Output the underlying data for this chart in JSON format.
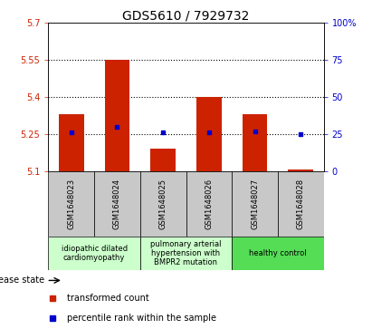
{
  "title": "GDS5610 / 7929732",
  "samples": [
    "GSM1648023",
    "GSM1648024",
    "GSM1648025",
    "GSM1648026",
    "GSM1648027",
    "GSM1648028"
  ],
  "bar_values": [
    5.33,
    5.55,
    5.19,
    5.4,
    5.33,
    5.105
  ],
  "percentile_values": [
    26,
    30,
    26,
    26,
    27,
    25
  ],
  "ylim_left": [
    5.1,
    5.7
  ],
  "ylim_right": [
    0,
    100
  ],
  "yticks_left": [
    5.1,
    5.25,
    5.4,
    5.55,
    5.7
  ],
  "yticks_right": [
    0,
    25,
    50,
    75,
    100
  ],
  "bar_color": "#cc2200",
  "dot_color": "#0000cc",
  "bar_width": 0.55,
  "baseline": 5.1,
  "grid_lines": [
    5.25,
    5.4,
    5.55
  ],
  "disease_groups": [
    {
      "label": "idiopathic dilated\ncardiomyopathy",
      "indices": [
        0,
        1
      ],
      "color": "#ccffcc"
    },
    {
      "label": "pulmonary arterial\nhypertension with\nBMPR2 mutation",
      "indices": [
        2,
        3
      ],
      "color": "#ccffcc"
    },
    {
      "label": "healthy control",
      "indices": [
        4,
        5
      ],
      "color": "#55dd55"
    }
  ],
  "legend_items": [
    {
      "label": "transformed count",
      "color": "#cc2200"
    },
    {
      "label": "percentile rank within the sample",
      "color": "#0000cc"
    }
  ],
  "bg_color": "#c8c8c8",
  "plot_bg": "#ffffff",
  "title_fontsize": 10,
  "tick_fontsize": 7,
  "sample_fontsize": 6,
  "group_fontsize": 6,
  "legend_fontsize": 7
}
